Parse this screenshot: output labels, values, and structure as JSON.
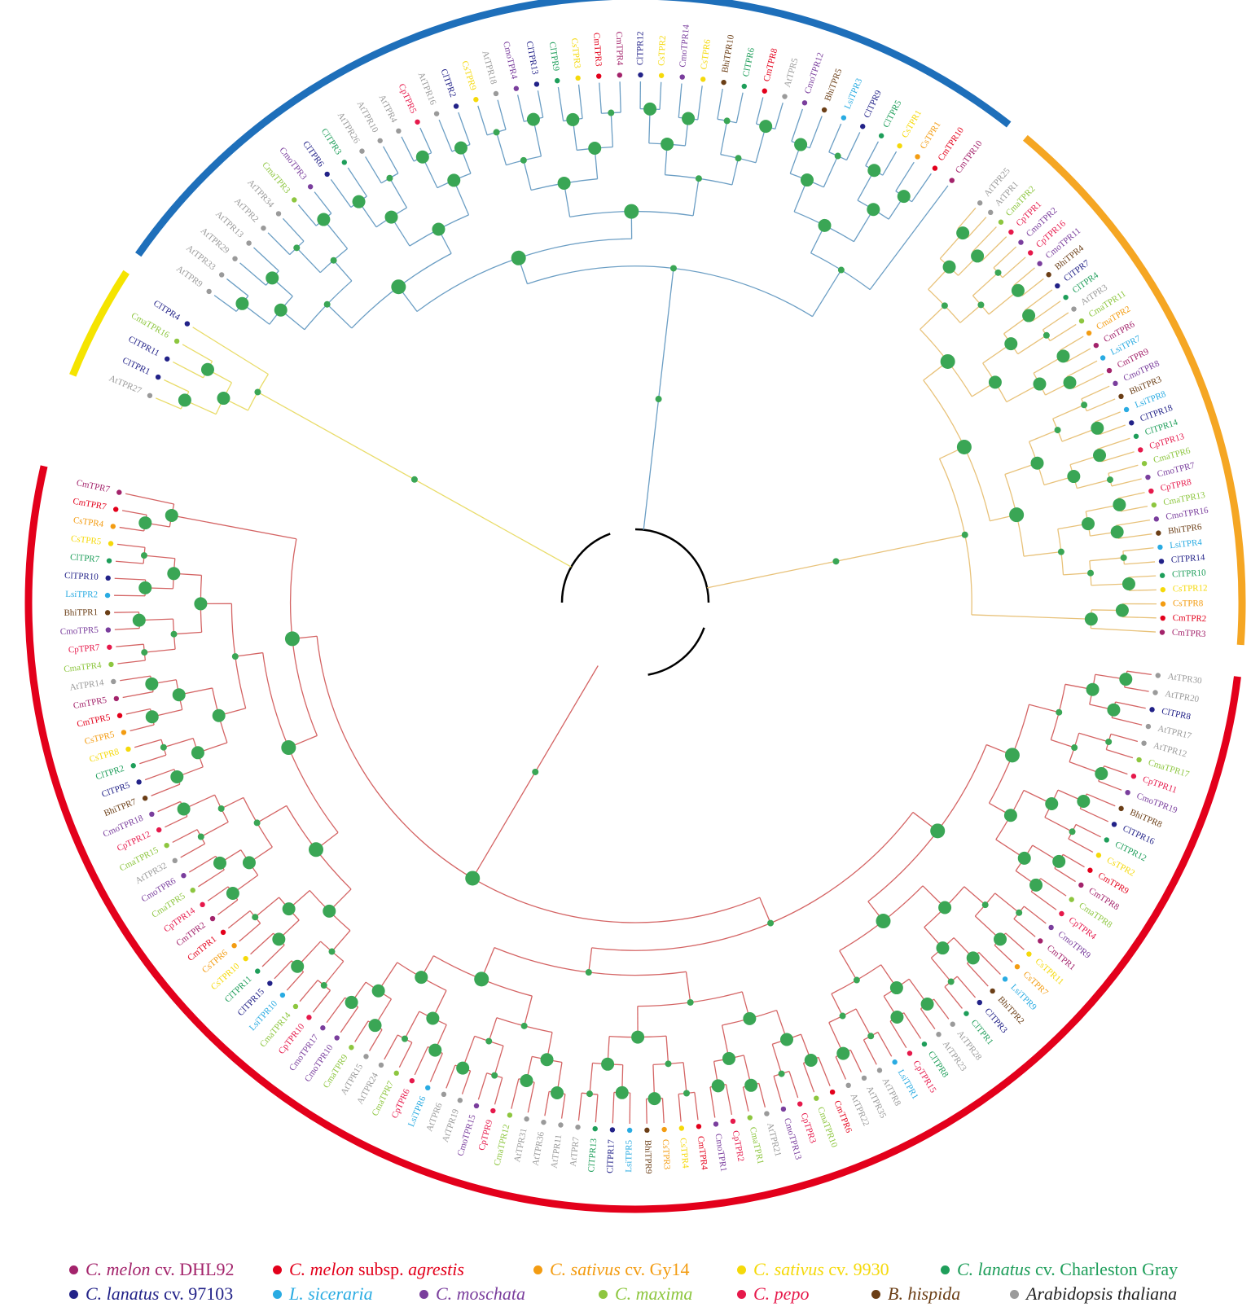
{
  "colors": {
    "blue_clade": "#1e6fba",
    "orange_clade": "#f5a623",
    "yellow_clade": "#f5e400",
    "red_clade": "#e3001b",
    "blue_branch": "#6b9ec4",
    "orange_branch": "#e8c27a",
    "yellow_branch": "#e9dc6a",
    "red_branch": "#d46464",
    "root_branch": "#000000",
    "node": "#3aa655"
  },
  "species": {
    "Cm": {
      "color": "#a3236b"
    },
    "Cma": {
      "color": "#8dc63f"
    },
    "Cmo": {
      "color": "#7a3e9d"
    },
    "Cp": {
      "color": "#e6194b"
    },
    "Cs": {
      "color": "#f39c12"
    },
    "CsY": {
      "color": "#f5d90a"
    },
    "Cl": {
      "color": "#1e9e5a"
    },
    "ClD": {
      "color": "#222288"
    },
    "Lsi": {
      "color": "#29abe2"
    },
    "Bhi": {
      "color": "#6b3e16"
    },
    "At": {
      "color": "#9a9a9a"
    },
    "Cmr": {
      "color": "#e3001b"
    }
  },
  "clades": [
    {
      "name": "yellow",
      "color": "yellow_clade",
      "leaves": [
        [
          "AtTPR27",
          "At"
        ],
        [
          "ClTPR1",
          "ClD"
        ],
        [
          "ClTPR11",
          "ClD"
        ],
        [
          "CmaTPR16",
          "Cma"
        ],
        [
          "ClTPR4",
          "ClD"
        ]
      ]
    },
    {
      "name": "blue",
      "color": "blue_clade",
      "leaves": [
        [
          "AtTPR9",
          "At"
        ],
        [
          "AtTPR33",
          "At"
        ],
        [
          "AtTPR29",
          "At"
        ],
        [
          "AtTPR13",
          "At"
        ],
        [
          "AtTPR2",
          "At"
        ],
        [
          "AtTPR34",
          "At"
        ],
        [
          "CmaTPR3",
          "Cma"
        ],
        [
          "CmoTPR3",
          "Cmo"
        ],
        [
          "ClTPR6",
          "ClD"
        ],
        [
          "ClTPR3",
          "Cl"
        ],
        [
          "AtTPR26",
          "At"
        ],
        [
          "AtTPR10",
          "At"
        ],
        [
          "AtTPR4",
          "At"
        ],
        [
          "CpTPR5",
          "Cp"
        ],
        [
          "AtTPR16",
          "At"
        ],
        [
          "ClTPR2",
          "ClD"
        ],
        [
          "CsTPR9",
          "CsY"
        ],
        [
          "AtTPR18",
          "At"
        ],
        [
          "CmoTPR4",
          "Cmo"
        ],
        [
          "ClTPR13",
          "ClD"
        ],
        [
          "ClTPR9",
          "Cl"
        ],
        [
          "CsTPR3",
          "CsY"
        ],
        [
          "CmTPR3",
          "Cmr"
        ],
        [
          "CmTPR4",
          "Cm"
        ],
        [
          "ClTPR12",
          "ClD"
        ],
        [
          "CsTPR2",
          "CsY"
        ],
        [
          "CmoTPR14",
          "Cmo"
        ],
        [
          "CsTPR6",
          "CsY"
        ],
        [
          "BhiTPR10",
          "Bhi"
        ],
        [
          "ClTPR6",
          "Cl"
        ],
        [
          "CmTPR8",
          "Cmr"
        ],
        [
          "AtTPR5",
          "At"
        ],
        [
          "CmoTPR12",
          "Cmo"
        ],
        [
          "BhiTPR5",
          "Bhi"
        ],
        [
          "LsiTPR3",
          "Lsi"
        ],
        [
          "ClTPR9",
          "ClD"
        ],
        [
          "ClTPR5",
          "Cl"
        ],
        [
          "CsTPR1",
          "CsY"
        ],
        [
          "CsTPR1",
          "Cs"
        ],
        [
          "CmTPR10",
          "Cmr"
        ],
        [
          "CmTPR10",
          "Cm"
        ]
      ]
    },
    {
      "name": "orange",
      "color": "orange_clade",
      "leaves": [
        [
          "AtTPR25",
          "At"
        ],
        [
          "AtTPR1",
          "At"
        ],
        [
          "CmaTPR2",
          "Cma"
        ],
        [
          "CpTPR1",
          "Cp"
        ],
        [
          "CmoTPR2",
          "Cmo"
        ],
        [
          "CpTPR16",
          "Cp"
        ],
        [
          "CmoTPR11",
          "Cmo"
        ],
        [
          "BhiTPR4",
          "Bhi"
        ],
        [
          "ClTPR7",
          "ClD"
        ],
        [
          "ClTPR4",
          "Cl"
        ],
        [
          "AtTPR3",
          "At"
        ],
        [
          "CmaTPR11",
          "Cma"
        ],
        [
          "CmaTPR2",
          "Cs"
        ],
        [
          "CmTPR6",
          "Cm"
        ],
        [
          "LsiTPR7",
          "Lsi"
        ],
        [
          "CmTPR9",
          "Cm"
        ],
        [
          "CmoTPR8",
          "Cmo"
        ],
        [
          "BhiTPR3",
          "Bhi"
        ],
        [
          "LsiTPR8",
          "Lsi"
        ],
        [
          "ClTPR18",
          "ClD"
        ],
        [
          "ClTPR14",
          "Cl"
        ],
        [
          "CpTPR13",
          "Cp"
        ],
        [
          "CmaTPR6",
          "Cma"
        ],
        [
          "CmoTPR7",
          "Cmo"
        ],
        [
          "CpTPR8",
          "Cp"
        ],
        [
          "CmaTPR13",
          "Cma"
        ],
        [
          "CmoTPR16",
          "Cmo"
        ],
        [
          "BhiTPR6",
          "Bhi"
        ],
        [
          "LsiTPR4",
          "Lsi"
        ],
        [
          "ClTPR14",
          "ClD"
        ],
        [
          "ClTPR10",
          "Cl"
        ],
        [
          "CsTPR12",
          "CsY"
        ],
        [
          "CsTPR8",
          "Cs"
        ],
        [
          "CmTPR2",
          "Cmr"
        ],
        [
          "CmTPR3",
          "Cm"
        ]
      ]
    },
    {
      "name": "red",
      "color": "red_clade",
      "leaves": [
        [
          "AtTPR30",
          "At"
        ],
        [
          "AtTPR20",
          "At"
        ],
        [
          "ClTPR8",
          "ClD"
        ],
        [
          "AtTPR17",
          "At"
        ],
        [
          "AtTPR12",
          "At"
        ],
        [
          "CmaTPR17",
          "Cma"
        ],
        [
          "CpTPR11",
          "Cp"
        ],
        [
          "CmoTPR19",
          "Cmo"
        ],
        [
          "BhiTPR8",
          "Bhi"
        ],
        [
          "ClTPR16",
          "ClD"
        ],
        [
          "ClTPR12",
          "Cl"
        ],
        [
          "CsTPR2",
          "CsY"
        ],
        [
          "CmTPR9",
          "Cmr"
        ],
        [
          "CmTPR8",
          "Cm"
        ],
        [
          "CmaTPR8",
          "Cma"
        ],
        [
          "CpTPR4",
          "Cp"
        ],
        [
          "CmoTPR9",
          "Cmo"
        ],
        [
          "CmTPR1",
          "Cm"
        ],
        [
          "CsTPR11",
          "CsY"
        ],
        [
          "CsTPR7",
          "Cs"
        ],
        [
          "LsiTPR9",
          "Lsi"
        ],
        [
          "BhiTPR2",
          "Bhi"
        ],
        [
          "ClTPR3",
          "ClD"
        ],
        [
          "ClTPR1",
          "Cl"
        ],
        [
          "AtTPR28",
          "At"
        ],
        [
          "AtTPR23",
          "At"
        ],
        [
          "ClTPR8",
          "Cl"
        ],
        [
          "CpTPR15",
          "Cp"
        ],
        [
          "LsiTPR1",
          "Lsi"
        ],
        [
          "AtTPR8",
          "At"
        ],
        [
          "AtTPR35",
          "At"
        ],
        [
          "AtTPR22",
          "At"
        ],
        [
          "CmTPR6",
          "Cmr"
        ],
        [
          "CmaTPR10",
          "Cma"
        ],
        [
          "CpTPR3",
          "Cp"
        ],
        [
          "CmoTPR13",
          "Cmo"
        ],
        [
          "AtTPR21",
          "At"
        ],
        [
          "CmaTPR1",
          "Cma"
        ],
        [
          "CpTPR2",
          "Cp"
        ],
        [
          "CmoTPR1",
          "Cmo"
        ],
        [
          "CmTPR4",
          "Cmr"
        ],
        [
          "CsTPR4",
          "CsY"
        ],
        [
          "CsTPR3",
          "Cs"
        ],
        [
          "BhiTPR9",
          "Bhi"
        ],
        [
          "LsiTPR5",
          "Lsi"
        ],
        [
          "ClTPR17",
          "ClD"
        ],
        [
          "ClTPR13",
          "Cl"
        ],
        [
          "AtTPR7",
          "At"
        ],
        [
          "AtTPR11",
          "At"
        ],
        [
          "AtTPR36",
          "At"
        ],
        [
          "AtTPR31",
          "At"
        ],
        [
          "CmaTPR12",
          "Cma"
        ],
        [
          "CpTPR9",
          "Cp"
        ],
        [
          "CmoTPR15",
          "Cmo"
        ],
        [
          "AtTPR19",
          "At"
        ],
        [
          "AtTPR6",
          "At"
        ],
        [
          "LsiTPR6",
          "Lsi"
        ],
        [
          "CpTPR6",
          "Cp"
        ],
        [
          "CmaTPR7",
          "Cma"
        ],
        [
          "AtTPR24",
          "At"
        ],
        [
          "AtTPR15",
          "At"
        ],
        [
          "CmaTPR9",
          "Cma"
        ],
        [
          "CmoTPR10",
          "Cmo"
        ],
        [
          "CmoTPR17",
          "Cmo"
        ],
        [
          "CpTPR10",
          "Cp"
        ],
        [
          "CmaTPR14",
          "Cma"
        ],
        [
          "LsiTPR10",
          "Lsi"
        ],
        [
          "ClTPR15",
          "ClD"
        ],
        [
          "ClTPR11",
          "Cl"
        ],
        [
          "CsTPR10",
          "CsY"
        ],
        [
          "CsTPR6",
          "Cs"
        ],
        [
          "CmTPR1",
          "Cmr"
        ],
        [
          "CmTPR2",
          "Cm"
        ],
        [
          "CpTPR14",
          "Cp"
        ],
        [
          "CmaTPR5",
          "Cma"
        ],
        [
          "CmoTPR6",
          "Cmo"
        ],
        [
          "AtTPR32",
          "At"
        ],
        [
          "CmaTPR15",
          "Cma"
        ],
        [
          "CpTPR12",
          "Cp"
        ],
        [
          "CmoTPR18",
          "Cmo"
        ],
        [
          "BhiTPR7",
          "Bhi"
        ],
        [
          "ClTPR5",
          "ClD"
        ],
        [
          "ClTPR2",
          "Cl"
        ],
        [
          "CsTPR8",
          "CsY"
        ],
        [
          "CsTPR5",
          "Cs"
        ],
        [
          "CmTPR5",
          "Cmr"
        ],
        [
          "CmTPR5",
          "Cm"
        ],
        [
          "AtTPR14",
          "At"
        ],
        [
          "CmaTPR4",
          "Cma"
        ],
        [
          "CpTPR7",
          "Cp"
        ],
        [
          "CmoTPR5",
          "Cmo"
        ],
        [
          "BhiTPR1",
          "Bhi"
        ],
        [
          "LsiTPR2",
          "Lsi"
        ],
        [
          "ClTPR10",
          "ClD"
        ],
        [
          "ClTPR7",
          "Cl"
        ],
        [
          "CsTPR5",
          "CsY"
        ],
        [
          "CsTPR4",
          "Cs"
        ],
        [
          "CmTPR7",
          "Cmr"
        ],
        [
          "CmTPR7",
          "Cm"
        ]
      ]
    }
  ],
  "legend": {
    "row1": [
      {
        "key": "Cm",
        "italic": "C. melon",
        "plain": " cv. DHL92",
        "italic2": "",
        "color": "#a3236b"
      },
      {
        "key": "Cmr",
        "italic": "C. melon",
        "plain": " subsp. ",
        "italic2": "agrestis",
        "color": "#e3001b"
      },
      {
        "key": "Cs",
        "italic": "C. sativus",
        "plain": " cv. Gy14",
        "italic2": "",
        "color": "#f39c12"
      },
      {
        "key": "CsY",
        "italic": "C. sativus",
        "plain": " cv. 9930",
        "italic2": "",
        "color": "#f5d90a"
      },
      {
        "key": "Cl",
        "italic": "C. lanatus",
        "plain": " cv. Charleston Gray",
        "italic2": "",
        "color": "#1e9e5a"
      }
    ],
    "row2": [
      {
        "key": "ClD",
        "italic": "C. lanatus",
        "plain": " cv. 97103",
        "italic2": "",
        "color": "#222288"
      },
      {
        "key": "Lsi",
        "italic": "L. siceraria",
        "plain": "",
        "italic2": "",
        "color": "#29abe2"
      },
      {
        "key": "Cmo",
        "italic": "C. moschata",
        "plain": "",
        "italic2": "",
        "color": "#7a3e9d"
      },
      {
        "key": "Cma",
        "italic": "C. maxima",
        "plain": "",
        "italic2": "",
        "color": "#8dc63f"
      },
      {
        "key": "Cp",
        "italic": "C. pepo",
        "plain": "",
        "italic2": "",
        "color": "#e6194b"
      },
      {
        "key": "Bhi",
        "italic": "B. hispida",
        "plain": "",
        "italic2": "",
        "color": "#6b3e16"
      },
      {
        "key": "At",
        "italic": "Arabidopsis thaliana",
        "plain": "",
        "italic2": "",
        "color": "#9a9a9a"
      }
    ]
  }
}
